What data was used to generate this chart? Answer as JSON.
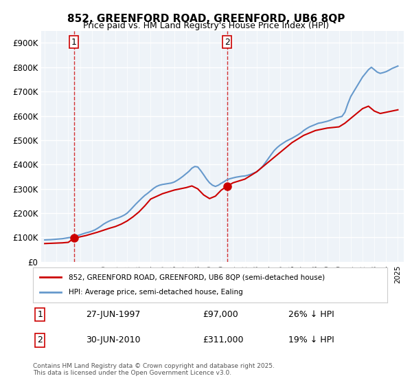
{
  "title": "852, GREENFORD ROAD, GREENFORD, UB6 8QP",
  "subtitle": "Price paid vs. HM Land Registry's House Price Index (HPI)",
  "ylabel_ticks": [
    "£0",
    "£100K",
    "£200K",
    "£300K",
    "£400K",
    "£500K",
    "£600K",
    "£700K",
    "£800K",
    "£900K"
  ],
  "ytick_values": [
    0,
    100000,
    200000,
    300000,
    400000,
    500000,
    600000,
    700000,
    800000,
    900000
  ],
  "ylim": [
    0,
    950000
  ],
  "xlim_start": 1995,
  "xlim_end": 2025.5,
  "purchase1": {
    "year": 1997.49,
    "price": 97000,
    "label": "1",
    "date": "27-JUN-1997",
    "pct": "26% ↓ HPI"
  },
  "purchase2": {
    "year": 2010.49,
    "price": 311000,
    "label": "2",
    "date": "30-JUN-2010",
    "pct": "19% ↓ HPI"
  },
  "legend_label_red": "852, GREENFORD ROAD, GREENFORD, UB6 8QP (semi-detached house)",
  "legend_label_blue": "HPI: Average price, semi-detached house, Ealing",
  "footnote": "Contains HM Land Registry data © Crown copyright and database right 2025.\nThis data is licensed under the Open Government Licence v3.0.",
  "table_rows": [
    {
      "num": "1",
      "date": "27-JUN-1997",
      "price": "£97,000",
      "pct": "26% ↓ HPI"
    },
    {
      "num": "2",
      "date": "30-JUN-2010",
      "price": "£311,000",
      "pct": "19% ↓ HPI"
    }
  ],
  "red_color": "#cc0000",
  "blue_color": "#6699cc",
  "bg_color": "#eef3f8",
  "grid_color": "#ffffff",
  "hpi_data": {
    "years": [
      1995,
      1995.25,
      1995.5,
      1995.75,
      1996,
      1996.25,
      1996.5,
      1996.75,
      1997,
      1997.25,
      1997.5,
      1997.75,
      1998,
      1998.25,
      1998.5,
      1998.75,
      1999,
      1999.25,
      1999.5,
      1999.75,
      2000,
      2000.25,
      2000.5,
      2000.75,
      2001,
      2001.25,
      2001.5,
      2001.75,
      2002,
      2002.25,
      2002.5,
      2002.75,
      2003,
      2003.25,
      2003.5,
      2003.75,
      2004,
      2004.25,
      2004.5,
      2004.75,
      2005,
      2005.25,
      2005.5,
      2005.75,
      2006,
      2006.25,
      2006.5,
      2006.75,
      2007,
      2007.25,
      2007.5,
      2007.75,
      2008,
      2008.25,
      2008.5,
      2008.75,
      2009,
      2009.25,
      2009.5,
      2009.75,
      2010,
      2010.25,
      2010.5,
      2010.75,
      2011,
      2011.25,
      2011.5,
      2011.75,
      2012,
      2012.25,
      2012.5,
      2012.75,
      2013,
      2013.25,
      2013.5,
      2013.75,
      2014,
      2014.25,
      2014.5,
      2014.75,
      2015,
      2015.25,
      2015.5,
      2015.75,
      2016,
      2016.25,
      2016.5,
      2016.75,
      2017,
      2017.25,
      2017.5,
      2017.75,
      2018,
      2018.25,
      2018.5,
      2018.75,
      2019,
      2019.25,
      2019.5,
      2019.75,
      2020,
      2020.25,
      2020.5,
      2020.75,
      2021,
      2021.25,
      2021.5,
      2021.75,
      2022,
      2022.25,
      2022.5,
      2022.75,
      2023,
      2023.25,
      2023.5,
      2023.75,
      2024,
      2024.25,
      2024.5,
      2024.75,
      2025
    ],
    "values": [
      90000,
      90500,
      91000,
      92000,
      93000,
      94000,
      95000,
      97000,
      99000,
      101000,
      104000,
      107000,
      111000,
      115000,
      119000,
      122000,
      126000,
      131000,
      138000,
      146000,
      155000,
      162000,
      168000,
      173000,
      177000,
      181000,
      186000,
      192000,
      200000,
      212000,
      225000,
      238000,
      250000,
      262000,
      273000,
      282000,
      292000,
      302000,
      310000,
      315000,
      318000,
      320000,
      322000,
      324000,
      328000,
      335000,
      343000,
      352000,
      362000,
      372000,
      385000,
      392000,
      390000,
      375000,
      358000,
      340000,
      325000,
      315000,
      310000,
      315000,
      323000,
      330000,
      338000,
      342000,
      345000,
      348000,
      350000,
      352000,
      353000,
      356000,
      360000,
      365000,
      370000,
      380000,
      392000,
      408000,
      425000,
      442000,
      458000,
      470000,
      480000,
      488000,
      496000,
      502000,
      508000,
      515000,
      522000,
      530000,
      540000,
      548000,
      555000,
      560000,
      565000,
      570000,
      572000,
      575000,
      578000,
      582000,
      587000,
      592000,
      595000,
      598000,
      615000,
      650000,
      680000,
      700000,
      720000,
      740000,
      760000,
      775000,
      790000,
      800000,
      790000,
      780000,
      775000,
      778000,
      782000,
      788000,
      795000,
      800000,
      805000
    ]
  },
  "red_data": {
    "years": [
      1995,
      1995.5,
      1996,
      1996.5,
      1997,
      1997.49,
      1997.75,
      1998.5,
      1999.5,
      2000.5,
      2001,
      2001.5,
      2002,
      2002.5,
      2003,
      2003.5,
      2004,
      2005,
      2006,
      2007,
      2007.5,
      2008,
      2008.5,
      2009,
      2009.5,
      2010,
      2010.49,
      2011,
      2012,
      2013,
      2014,
      2015,
      2016,
      2017,
      2018,
      2019,
      2020,
      2020.5,
      2021,
      2021.5,
      2022,
      2022.5,
      2023,
      2023.5,
      2024,
      2024.5,
      2025
    ],
    "values": [
      75000,
      76000,
      77000,
      78000,
      80000,
      97000,
      100000,
      108000,
      122000,
      138000,
      145000,
      155000,
      168000,
      185000,
      205000,
      230000,
      258000,
      280000,
      295000,
      305000,
      312000,
      300000,
      275000,
      260000,
      270000,
      295000,
      311000,
      325000,
      340000,
      370000,
      410000,
      450000,
      490000,
      520000,
      540000,
      550000,
      555000,
      570000,
      590000,
      610000,
      630000,
      640000,
      620000,
      610000,
      615000,
      620000,
      625000
    ]
  }
}
